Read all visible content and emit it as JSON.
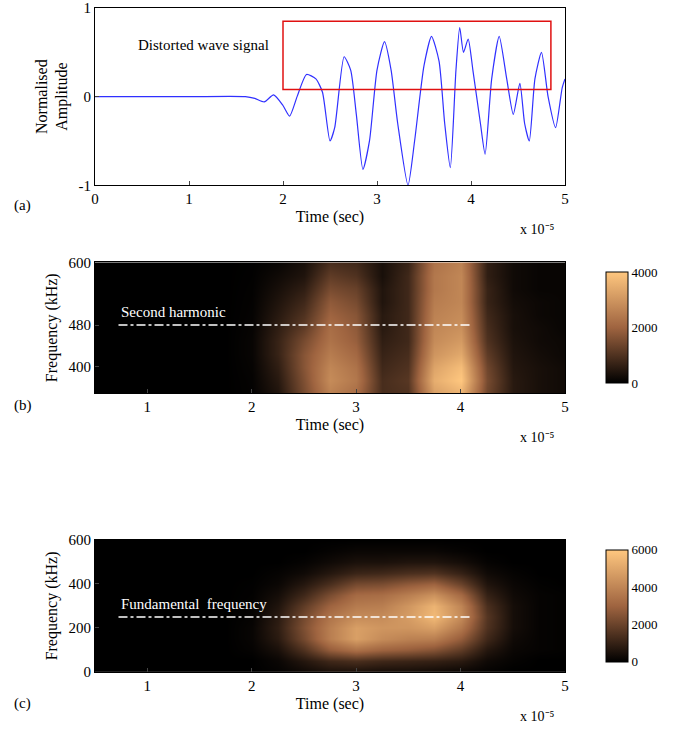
{
  "chart_data": [
    {
      "type": "line",
      "panel_label": "(a)",
      "x_label": "Time (sec)",
      "y_label": "Normalised Amplitude",
      "x_exponent": "x 10⁻⁵",
      "annotation": "Distorted wave signal",
      "highlight": {
        "x": [
          2e-05,
          4.85e-05
        ],
        "y": [
          0.08,
          0.85
        ],
        "color": "#e01010"
      },
      "color": "#3030ff",
      "grid": false,
      "x": [
        0,
        1e-05,
        1.6e-05,
        1.7e-05,
        1.8e-05,
        1.9e-05,
        2e-05,
        2.07e-05,
        2.15e-05,
        2.25e-05,
        2.35e-05,
        2.42e-05,
        2.5e-05,
        2.55e-05,
        2.65e-05,
        2.72e-05,
        2.78e-05,
        2.85e-05,
        2.92e-05,
        3e-05,
        3.08e-05,
        3.15e-05,
        3.22e-05,
        3.33e-05,
        3.4e-05,
        3.5e-05,
        3.58e-05,
        3.66e-05,
        3.72e-05,
        3.78e-05,
        3.84e-05,
        3.88e-05,
        3.92e-05,
        3.97e-05,
        4.02e-05,
        4.1e-05,
        4.15e-05,
        4.22e-05,
        4.3e-05,
        4.38e-05,
        4.45e-05,
        4.52e-05,
        4.57e-05,
        4.62e-05,
        4.68e-05,
        4.75e-05,
        4.82e-05,
        4.9e-05,
        4.97e-05,
        5e-05
      ],
      "values": [
        0,
        0,
        0,
        -0.02,
        -0.06,
        0.02,
        -0.1,
        -0.22,
        0,
        0.25,
        0.2,
        0.05,
        -0.5,
        -0.35,
        0.45,
        0.3,
        -0.2,
        -0.82,
        -0.5,
        0.3,
        0.62,
        0.3,
        -0.3,
        -1,
        -0.5,
        0.35,
        0.68,
        0.4,
        -0.3,
        -0.8,
        0.3,
        0.78,
        0.5,
        0.65,
        0.3,
        -0.3,
        -0.65,
        0.2,
        0.68,
        0.2,
        -0.2,
        0.15,
        -0.3,
        -0.5,
        0.2,
        0.5,
        0,
        -0.35,
        0.1,
        0.2
      ],
      "xlim": [
        0,
        5e-05
      ],
      "xticks": [
        0,
        {
          "value": 1e-05,
          "label": "1"
        },
        {
          "value": 2e-05,
          "label": "2"
        },
        {
          "value": 3e-05,
          "label": "3"
        },
        {
          "value": 4e-05,
          "label": "4"
        },
        {
          "value": 5e-05,
          "label": "5"
        }
      ],
      "ylim": [
        -1,
        1
      ],
      "yticks": [
        -1,
        0,
        1
      ]
    },
    {
      "type": "heatmap",
      "panel_label": "(b)",
      "x_label": "Time (sec)",
      "y_label": "Frequency (kHz)",
      "x_exponent": "x 10⁻⁵",
      "reference_line": {
        "value": 480,
        "label": "Second harmonic"
      },
      "x": [
        2.5e-06,
        5e-06,
        7.5e-06,
        1e-05,
        1.25e-05,
        1.5e-05,
        1.75e-05,
        2e-05,
        2.25e-05,
        2.5e-05,
        2.75e-05,
        3e-05,
        3.25e-05,
        3.5e-05,
        3.75e-05,
        4e-05,
        4.25e-05,
        4.5e-05,
        4.75e-05,
        5e-05
      ],
      "y": [
        350,
        375,
        400,
        425,
        450,
        475,
        500,
        525,
        550,
        575,
        600
      ],
      "z": [
        [
          0,
          0,
          0,
          0,
          0,
          0,
          0,
          50,
          400,
          1500,
          2600,
          2200,
          900,
          1000,
          3200,
          3600,
          1400,
          500,
          300,
          200
        ],
        [
          0,
          0,
          0,
          0,
          0,
          0,
          0,
          60,
          500,
          1600,
          2800,
          2400,
          900,
          1100,
          3500,
          4000,
          1500,
          500,
          300,
          200
        ],
        [
          0,
          0,
          0,
          0,
          0,
          0,
          0,
          80,
          600,
          1700,
          2700,
          2300,
          800,
          1000,
          3300,
          3800,
          1400,
          450,
          300,
          200
        ],
        [
          0,
          0,
          0,
          0,
          0,
          0,
          0,
          100,
          700,
          1700,
          2500,
          2100,
          700,
          900,
          3000,
          3400,
          1200,
          400,
          250,
          150
        ],
        [
          0,
          0,
          0,
          0,
          0,
          0,
          0,
          100,
          700,
          1500,
          2300,
          1900,
          600,
          800,
          2800,
          3100,
          1000,
          350,
          200,
          150
        ],
        [
          0,
          0,
          0,
          0,
          0,
          0,
          0,
          80,
          600,
          1200,
          2200,
          1800,
          500,
          800,
          2700,
          2900,
          900,
          300,
          200,
          100
        ],
        [
          0,
          0,
          0,
          0,
          0,
          0,
          0,
          60,
          500,
          1000,
          2000,
          1700,
          500,
          800,
          2600,
          2800,
          800,
          300,
          150,
          100
        ],
        [
          0,
          0,
          0,
          0,
          0,
          0,
          0,
          50,
          400,
          800,
          1800,
          1500,
          400,
          800,
          2500,
          2700,
          700,
          250,
          150,
          100
        ],
        [
          0,
          0,
          0,
          0,
          0,
          0,
          0,
          40,
          300,
          600,
          1500,
          1300,
          400,
          800,
          2400,
          2700,
          700,
          200,
          100,
          100
        ],
        [
          0,
          0,
          0,
          0,
          0,
          0,
          0,
          30,
          200,
          400,
          1200,
          1000,
          300,
          800,
          2400,
          2700,
          600,
          200,
          100,
          100
        ],
        [
          0,
          0,
          0,
          0,
          0,
          0,
          0,
          20,
          100,
          300,
          900,
          800,
          300,
          700,
          2300,
          2600,
          600,
          200,
          100,
          100
        ]
      ],
      "xlim": [
        5e-06,
        5e-05
      ],
      "xticks": [
        {
          "value": 1e-05,
          "label": "1"
        },
        {
          "value": 2e-05,
          "label": "2"
        },
        {
          "value": 3e-05,
          "label": "3"
        },
        {
          "value": 4e-05,
          "label": "4"
        },
        {
          "value": 5e-05,
          "label": "5"
        }
      ],
      "ylim": [
        350,
        600
      ],
      "yticks": [
        400,
        480,
        600
      ],
      "colorbar": {
        "range": [
          0,
          4000
        ],
        "ticks": [
          0,
          2000,
          4000
        ]
      }
    },
    {
      "type": "heatmap",
      "panel_label": "(c)",
      "x_label": "Time (sec)",
      "y_label": "Frequency (kHz)",
      "x_exponent": "x 10⁻⁵",
      "reference_line": {
        "value": 250,
        "label": "Fundamental  frequency"
      },
      "x": [
        2.5e-06,
        5e-06,
        7.5e-06,
        1e-05,
        1.25e-05,
        1.5e-05,
        1.75e-05,
        2e-05,
        2.25e-05,
        2.5e-05,
        2.75e-05,
        3e-05,
        3.25e-05,
        3.5e-05,
        3.75e-05,
        4e-05,
        4.25e-05,
        4.5e-05,
        4.75e-05,
        5e-05
      ],
      "y": [
        0,
        50,
        100,
        150,
        200,
        250,
        300,
        350,
        400,
        450,
        500,
        550,
        600
      ],
      "z": [
        [
          0,
          0,
          0,
          0,
          0,
          0,
          0,
          0,
          100,
          300,
          500,
          500,
          400,
          400,
          300,
          200,
          100,
          0,
          0,
          0
        ],
        [
          0,
          0,
          0,
          0,
          0,
          0,
          0,
          0,
          200,
          700,
          1200,
          1400,
          1200,
          1100,
          1000,
          800,
          300,
          100,
          0,
          0
        ],
        [
          0,
          0,
          0,
          0,
          0,
          0,
          0,
          100,
          500,
          1500,
          2800,
          3400,
          3000,
          2800,
          2500,
          1800,
          700,
          200,
          100,
          50
        ],
        [
          0,
          0,
          0,
          0,
          0,
          0,
          0,
          150,
          800,
          2200,
          3800,
          4800,
          4200,
          3900,
          3800,
          2800,
          1200,
          300,
          100,
          50
        ],
        [
          0,
          0,
          0,
          0,
          0,
          0,
          0,
          150,
          900,
          2400,
          3800,
          4800,
          4500,
          4500,
          4800,
          3600,
          1500,
          400,
          100,
          50
        ],
        [
          0,
          0,
          0,
          0,
          0,
          0,
          0,
          100,
          800,
          2200,
          3500,
          4200,
          4200,
          4700,
          5600,
          4200,
          1600,
          400,
          100,
          50
        ],
        [
          0,
          0,
          0,
          0,
          0,
          0,
          0,
          80,
          600,
          1800,
          3000,
          3700,
          3800,
          4500,
          5400,
          4000,
          1400,
          400,
          100,
          50
        ],
        [
          0,
          0,
          0,
          0,
          0,
          0,
          0,
          50,
          400,
          1200,
          2300,
          3200,
          3300,
          3800,
          4400,
          3200,
          1000,
          300,
          100,
          50
        ],
        [
          0,
          0,
          0,
          0,
          0,
          0,
          0,
          30,
          200,
          700,
          1400,
          2200,
          2300,
          2700,
          3000,
          2000,
          600,
          200,
          50,
          0
        ],
        [
          0,
          0,
          0,
          0,
          0,
          0,
          0,
          0,
          100,
          300,
          700,
          1100,
          1200,
          1400,
          1500,
          1000,
          300,
          100,
          0,
          0
        ],
        [
          0,
          0,
          0,
          0,
          0,
          0,
          0,
          0,
          0,
          100,
          300,
          500,
          500,
          600,
          600,
          400,
          100,
          0,
          0,
          0
        ],
        [
          0,
          0,
          0,
          0,
          0,
          0,
          0,
          0,
          0,
          0,
          100,
          200,
          200,
          200,
          200,
          100,
          0,
          0,
          0,
          0
        ],
        [
          0,
          0,
          0,
          0,
          0,
          0,
          0,
          0,
          0,
          0,
          0,
          0,
          0,
          0,
          0,
          0,
          0,
          0,
          0,
          0
        ]
      ],
      "xlim": [
        5e-06,
        5e-05
      ],
      "xticks": [
        {
          "value": 1e-05,
          "label": "1"
        },
        {
          "value": 2e-05,
          "label": "2"
        },
        {
          "value": 3e-05,
          "label": "3"
        },
        {
          "value": 4e-05,
          "label": "4"
        },
        {
          "value": 5e-05,
          "label": "5"
        }
      ],
      "ylim": [
        0,
        600
      ],
      "yticks": [
        0,
        200,
        400,
        600
      ],
      "colorbar": {
        "range": [
          0,
          6000
        ],
        "ticks": [
          0,
          2000,
          4000,
          6000
        ]
      }
    }
  ]
}
